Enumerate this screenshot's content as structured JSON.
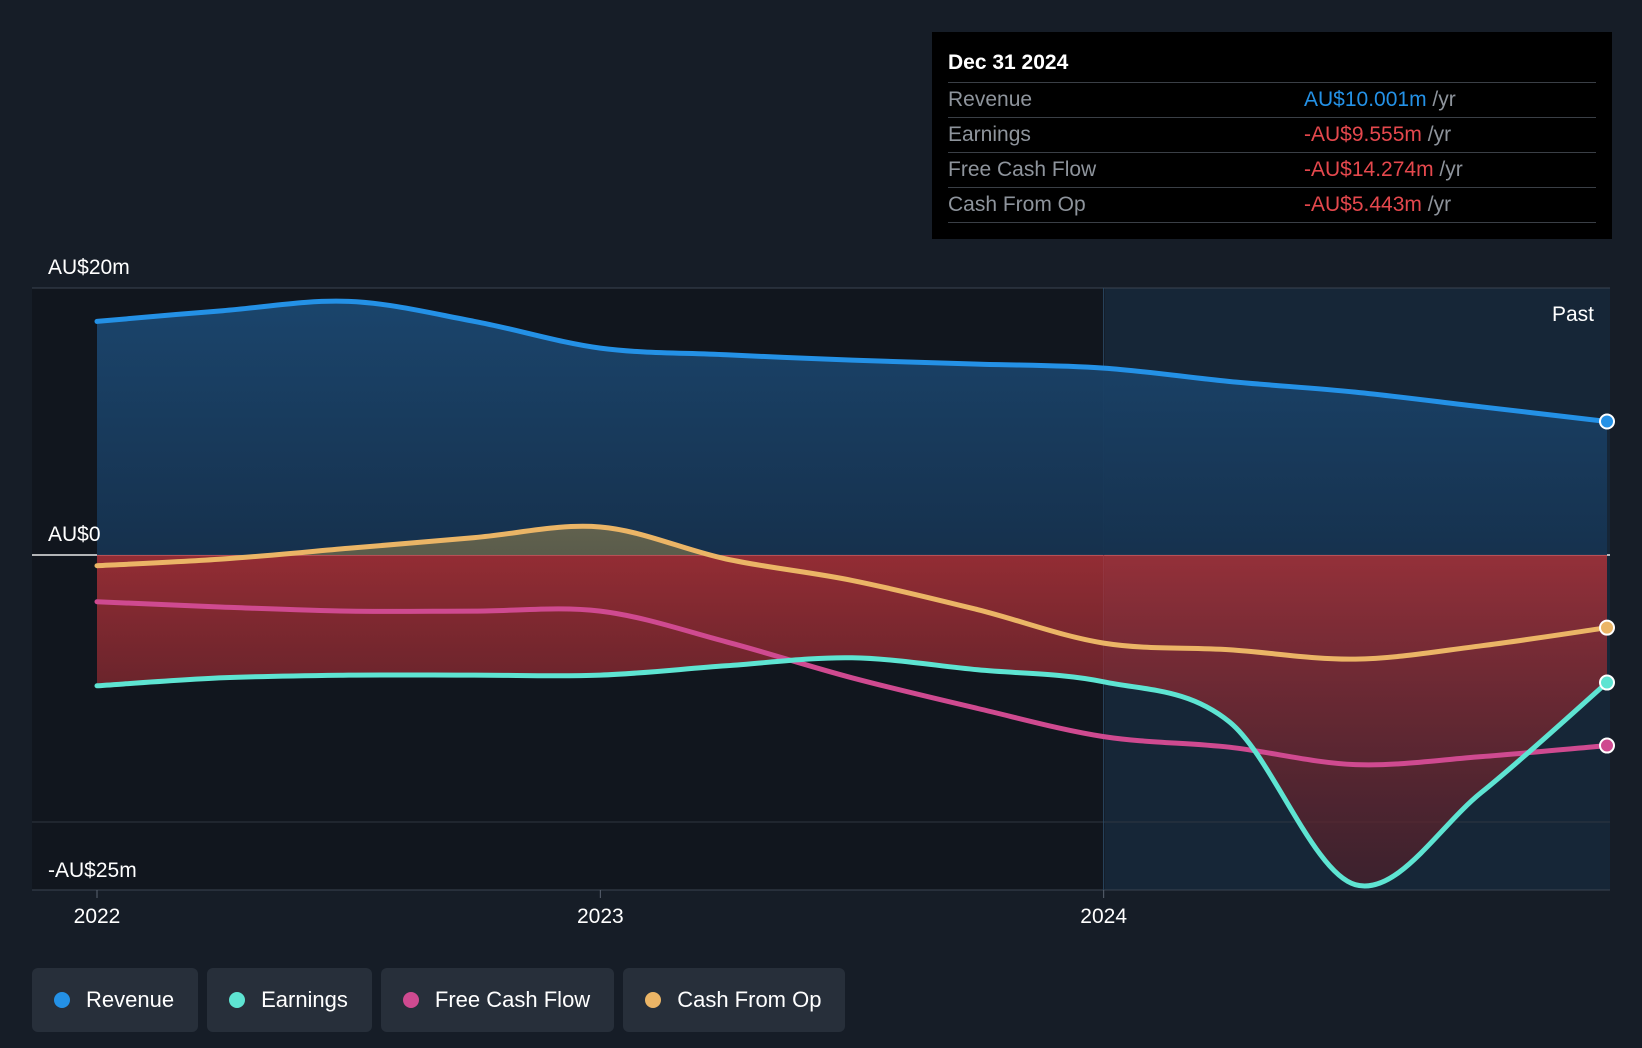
{
  "chart_data": {
    "type": "line",
    "title": "",
    "x_ticks": [
      "2022",
      "2023",
      "2024"
    ],
    "y_labels": {
      "top": "AU$20m",
      "zero": "AU$0",
      "bottom": "-AU$25m"
    },
    "ylim": [
      -25,
      20
    ],
    "past_label": "Past",
    "x": [
      2022.0,
      2022.25,
      2022.5,
      2022.75,
      2023.0,
      2023.25,
      2023.5,
      2023.75,
      2024.0,
      2024.25,
      2024.5,
      2024.75,
      2025.0
    ],
    "series": [
      {
        "name": "Revenue",
        "color": "#2491e6",
        "values": [
          17.5,
          18.3,
          19.0,
          17.5,
          15.5,
          15.0,
          14.6,
          14.3,
          14.0,
          13.0,
          12.2,
          11.1,
          10.001
        ]
      },
      {
        "name": "Earnings",
        "color": "#5ee4d2",
        "values": [
          -9.8,
          -9.2,
          -9.0,
          -9.0,
          -9.0,
          -8.3,
          -7.7,
          -8.6,
          -9.5,
          -12.5,
          -24.7,
          -17.8,
          -9.555
        ]
      },
      {
        "name": "Free Cash Flow",
        "color": "#cf4a90",
        "values": [
          -3.5,
          -3.9,
          -4.2,
          -4.2,
          -4.2,
          -6.5,
          -9.2,
          -11.5,
          -13.6,
          -14.4,
          -15.7,
          -15.1,
          -14.274
        ]
      },
      {
        "name": "Cash From Op",
        "color": "#ebb566",
        "values": [
          -0.8,
          -0.3,
          0.5,
          1.3,
          2.1,
          -0.3,
          -1.9,
          -4.1,
          -6.6,
          -7.1,
          -7.8,
          -6.8,
          -5.443
        ]
      }
    ]
  },
  "tooltip": {
    "date": "Dec 31 2024",
    "rows": [
      {
        "label": "Revenue",
        "value": "AU$10.001m",
        "unit": "/yr",
        "color": "#2491e6"
      },
      {
        "label": "Earnings",
        "value": "-AU$9.555m",
        "unit": "/yr",
        "color": "#e5484d"
      },
      {
        "label": "Free Cash Flow",
        "value": "-AU$14.274m",
        "unit": "/yr",
        "color": "#e5484d"
      },
      {
        "label": "Cash From Op",
        "value": "-AU$5.443m",
        "unit": "/yr",
        "color": "#e5484d"
      }
    ]
  },
  "legend": [
    {
      "label": "Revenue",
      "color": "#2491e6"
    },
    {
      "label": "Earnings",
      "color": "#5ee4d2"
    },
    {
      "label": "Free Cash Flow",
      "color": "#cf4a90"
    },
    {
      "label": "Cash From Op",
      "color": "#ebb566"
    }
  ]
}
